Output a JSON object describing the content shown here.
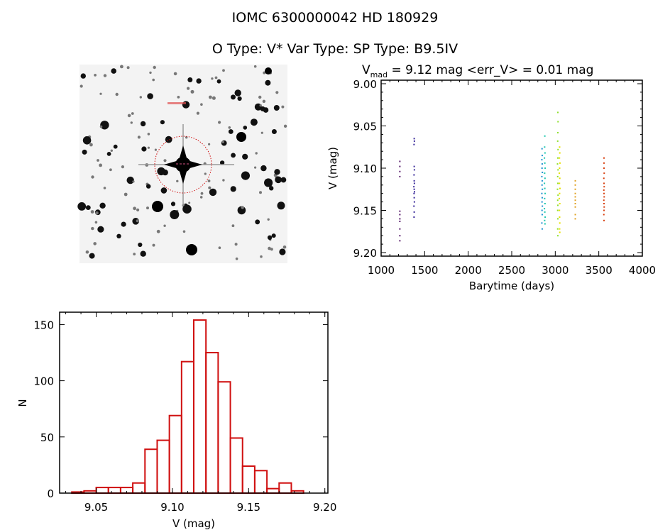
{
  "header": {
    "title_line1": "IOMC 6300000042    HD 180929",
    "title_line2": "O Type: V*  Var Type:    SP Type: B9.5IV"
  },
  "finder_image": {
    "description_colors": {
      "marker": "#d01010",
      "stars": "#000000",
      "background": "#f4f4f4"
    }
  },
  "chart_data": [
    {
      "type": "scatter",
      "title_main": "V",
      "title_sub": "mad",
      "title_rest": " = 9.12 mag <err_V> = 0.01 mag",
      "xlabel": "Barytime (days)",
      "ylabel": "V (mag)",
      "xlim": [
        1000,
        4000
      ],
      "ylim": [
        9.0,
        9.2
      ],
      "y_inverted": true,
      "xticks": [
        1000,
        1500,
        2000,
        2500,
        3000,
        3500,
        4000
      ],
      "xtick_labels": [
        "1000",
        "1500",
        "2000",
        "2500",
        "3000",
        "3500",
        "4000"
      ],
      "yticks": [
        9.0,
        9.05,
        9.1,
        9.15,
        9.2
      ],
      "ytick_labels": [
        "9.00",
        "9.05",
        "9.10",
        "9.15",
        "9.20"
      ],
      "series": [
        {
          "color": "#5a1f6e",
          "points": [
            [
              1215,
              9.092
            ],
            [
              1215,
              9.098
            ],
            [
              1215,
              9.104
            ],
            [
              1215,
              9.11
            ],
            [
              1215,
              9.151
            ],
            [
              1215,
              9.155
            ],
            [
              1215,
              9.16
            ],
            [
              1215,
              9.163
            ],
            [
              1215,
              9.172
            ],
            [
              1215,
              9.18
            ],
            [
              1215,
              9.186
            ]
          ]
        },
        {
          "color": "#3a2a9a",
          "points": [
            [
              1380,
              9.065
            ],
            [
              1382,
              9.068
            ],
            [
              1378,
              9.072
            ],
            [
              1380,
              9.098
            ],
            [
              1382,
              9.102
            ],
            [
              1378,
              9.108
            ],
            [
              1380,
              9.115
            ],
            [
              1382,
              9.118
            ],
            [
              1376,
              9.122
            ],
            [
              1380,
              9.125
            ],
            [
              1383,
              9.128
            ],
            [
              1378,
              9.13
            ],
            [
              1380,
              9.135
            ],
            [
              1382,
              9.14
            ],
            [
              1377,
              9.145
            ],
            [
              1380,
              9.152
            ],
            [
              1378,
              9.158
            ]
          ]
        },
        {
          "color": "#2090d0",
          "points": [
            [
              2848,
              9.077
            ],
            [
              2850,
              9.085
            ],
            [
              2846,
              9.09
            ],
            [
              2850,
              9.095
            ],
            [
              2848,
              9.1
            ],
            [
              2852,
              9.105
            ],
            [
              2846,
              9.11
            ],
            [
              2850,
              9.115
            ],
            [
              2848,
              9.12
            ],
            [
              2852,
              9.125
            ],
            [
              2846,
              9.13
            ],
            [
              2850,
              9.135
            ],
            [
              2848,
              9.14
            ],
            [
              2852,
              9.145
            ],
            [
              2848,
              9.15
            ],
            [
              2850,
              9.155
            ],
            [
              2846,
              9.165
            ],
            [
              2850,
              9.172
            ]
          ]
        },
        {
          "color": "#20c8b0",
          "points": [
            [
              2880,
              9.062
            ],
            [
              2878,
              9.075
            ],
            [
              2882,
              9.082
            ],
            [
              2876,
              9.088
            ],
            [
              2880,
              9.094
            ],
            [
              2884,
              9.1
            ],
            [
              2878,
              9.106
            ],
            [
              2882,
              9.112
            ],
            [
              2876,
              9.118
            ],
            [
              2880,
              9.124
            ],
            [
              2884,
              9.13
            ],
            [
              2878,
              9.136
            ],
            [
              2882,
              9.142
            ],
            [
              2876,
              9.148
            ],
            [
              2880,
              9.152
            ],
            [
              2884,
              9.158
            ],
            [
              2878,
              9.162
            ],
            [
              2882,
              9.166
            ]
          ]
        },
        {
          "color": "#90e030",
          "points": [
            [
              3030,
              9.034
            ],
            [
              3032,
              9.045
            ],
            [
              3030,
              9.058
            ],
            [
              3028,
              9.068
            ],
            [
              3032,
              9.078
            ],
            [
              3030,
              9.088
            ],
            [
              3026,
              9.095
            ],
            [
              3032,
              9.102
            ],
            [
              3028,
              9.11
            ],
            [
              3030,
              9.118
            ],
            [
              3026,
              9.125
            ],
            [
              3032,
              9.132
            ],
            [
              3028,
              9.138
            ],
            [
              3030,
              9.144
            ],
            [
              3028,
              9.15
            ],
            [
              3030,
              9.16
            ],
            [
              3028,
              9.172
            ],
            [
              3030,
              9.18
            ]
          ]
        },
        {
          "color": "#e8e000",
          "points": [
            [
              3050,
              9.075
            ],
            [
              3052,
              9.082
            ],
            [
              3048,
              9.088
            ],
            [
              3054,
              9.094
            ],
            [
              3050,
              9.1
            ],
            [
              3046,
              9.106
            ],
            [
              3052,
              9.112
            ],
            [
              3048,
              9.118
            ],
            [
              3054,
              9.124
            ],
            [
              3050,
              9.13
            ],
            [
              3046,
              9.136
            ],
            [
              3052,
              9.142
            ],
            [
              3048,
              9.15
            ],
            [
              3050,
              9.158
            ],
            [
              3052,
              9.165
            ],
            [
              3050,
              9.172
            ],
            [
              3052,
              9.176
            ]
          ]
        },
        {
          "color": "#e0a020",
          "points": [
            [
              3230,
              9.115
            ],
            [
              3230,
              9.12
            ],
            [
              3230,
              9.125
            ],
            [
              3230,
              9.13
            ],
            [
              3230,
              9.134
            ],
            [
              3230,
              9.138
            ],
            [
              3230,
              9.142
            ],
            [
              3230,
              9.146
            ],
            [
              3230,
              9.155
            ],
            [
              3230,
              9.16
            ]
          ]
        },
        {
          "color": "#d84010",
          "points": [
            [
              3560,
              9.088
            ],
            [
              3560,
              9.094
            ],
            [
              3560,
              9.1
            ],
            [
              3562,
              9.106
            ],
            [
              3558,
              9.112
            ],
            [
              3560,
              9.118
            ],
            [
              3562,
              9.122
            ],
            [
              3558,
              9.126
            ],
            [
              3560,
              9.13
            ],
            [
              3562,
              9.134
            ],
            [
              3558,
              9.138
            ],
            [
              3560,
              9.142
            ],
            [
              3562,
              9.146
            ],
            [
              3560,
              9.15
            ],
            [
              3558,
              9.155
            ],
            [
              3560,
              9.162
            ]
          ]
        }
      ]
    },
    {
      "type": "bar",
      "subtype": "histogram",
      "xlabel": "V (mag)",
      "ylabel": "N",
      "xlim": [
        9.026,
        9.202
      ],
      "ylim": [
        0,
        161
      ],
      "color": "#d01010",
      "bin_start": 9.034,
      "bin_width": 0.008,
      "values": [
        1,
        2,
        5,
        5,
        5,
        9,
        39,
        47,
        69,
        117,
        154,
        125,
        99,
        49,
        24,
        20,
        4,
        9,
        2
      ],
      "xticks": [
        9.05,
        9.1,
        9.15,
        9.2
      ],
      "xtick_labels": [
        "9.05",
        "9.10",
        "9.15",
        "9.20"
      ],
      "yticks": [
        0,
        50,
        100,
        150
      ],
      "ytick_labels": [
        "0",
        "50",
        "100",
        "150"
      ]
    }
  ]
}
